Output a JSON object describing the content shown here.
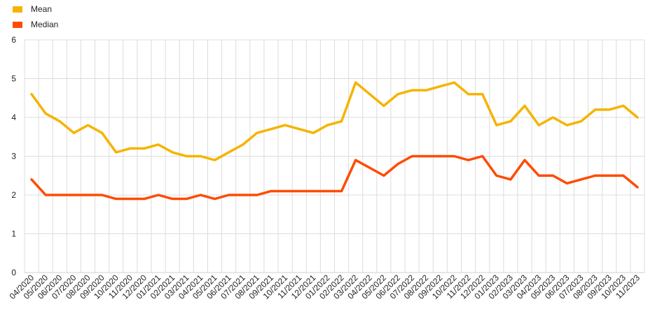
{
  "chart_data": {
    "type": "line",
    "title": "",
    "xlabel": "",
    "ylabel": "",
    "ylim": [
      0,
      6
    ],
    "yticks": [
      0,
      1,
      2,
      3,
      4,
      5,
      6
    ],
    "grid": true,
    "legend_position": "top-left",
    "categories": [
      "04/2020",
      "05/2020",
      "06/2020",
      "07/2020",
      "08/2020",
      "09/2020",
      "10/2020",
      "11/2020",
      "12/2020",
      "01/2021",
      "02/2021",
      "03/2021",
      "04/2021",
      "05/2021",
      "06/2021",
      "07/2021",
      "08/2021",
      "09/2021",
      "10/2021",
      "11/2021",
      "12/2021",
      "01/2022",
      "02/2022",
      "03/2022",
      "04/2022",
      "05/2022",
      "06/2022",
      "07/2022",
      "08/2022",
      "09/2022",
      "10/2022",
      "11/2022",
      "12/2022",
      "01/2023",
      "02/2023",
      "03/2023",
      "04/2023",
      "05/2023",
      "06/2023",
      "07/2023",
      "08/2023",
      "09/2023",
      "10/2023",
      "11/2023"
    ],
    "series": [
      {
        "name": "Mean",
        "color": "#F5B400",
        "values": [
          4.6,
          4.1,
          3.9,
          3.6,
          3.8,
          3.6,
          3.1,
          3.2,
          3.2,
          3.3,
          3.1,
          3.0,
          3.0,
          2.9,
          3.1,
          3.3,
          3.6,
          3.7,
          3.8,
          3.7,
          3.6,
          3.8,
          3.9,
          4.9,
          4.6,
          4.3,
          4.6,
          4.7,
          4.7,
          4.8,
          4.9,
          4.6,
          4.6,
          3.8,
          3.9,
          4.3,
          3.8,
          4.0,
          3.8,
          3.9,
          4.2,
          4.2,
          4.3,
          4.0
        ]
      },
      {
        "name": "Median",
        "color": "#FF4B00",
        "values": [
          2.4,
          2.0,
          2.0,
          2.0,
          2.0,
          2.0,
          1.9,
          1.9,
          1.9,
          2.0,
          1.9,
          1.9,
          2.0,
          1.9,
          2.0,
          2.0,
          2.0,
          2.1,
          2.1,
          2.1,
          2.1,
          2.1,
          2.1,
          2.9,
          2.7,
          2.5,
          2.8,
          3.0,
          3.0,
          3.0,
          3.0,
          2.9,
          3.0,
          2.5,
          2.4,
          2.9,
          2.5,
          2.5,
          2.3,
          2.4,
          2.5,
          2.5,
          2.5,
          2.2
        ]
      }
    ]
  }
}
